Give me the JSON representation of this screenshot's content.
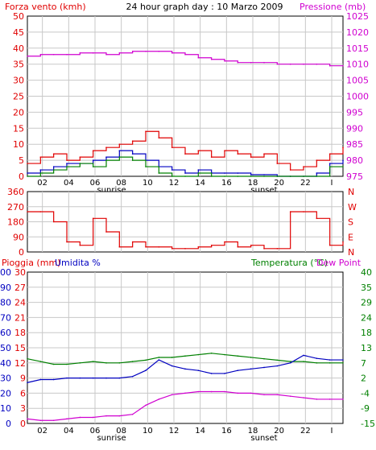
{
  "title": "24 hour graph day : 10 Marzo 2009",
  "colors": {
    "red": "#e00000",
    "green": "#008000",
    "blue": "#0000c0",
    "magenta": "#d000d0",
    "black": "#000000",
    "grid": "#c8c8c8"
  },
  "time_labels": [
    "02",
    "04",
    "06",
    "08",
    "10",
    "12",
    "14",
    "16",
    "18",
    "20",
    "22",
    "I"
  ],
  "sunrise_label": "sunrise",
  "sunset_label": "sunset",
  "chart_data": [
    {
      "type": "line",
      "id": "wind-pressure",
      "left_axis_label": "Forza vento (kmh)",
      "right_axis_label": "Pressione (mb)",
      "left_ticks": [
        "50",
        "45",
        "40",
        "35",
        "30",
        "25",
        "20",
        "15",
        "10",
        "5",
        "0"
      ],
      "right_ticks": [
        "1025",
        "1020",
        "1015",
        "1010",
        "1005",
        "1000",
        "995",
        "990",
        "985",
        "980",
        "975"
      ],
      "ylim_left": [
        0,
        50
      ],
      "ylim_right": [
        975,
        1025
      ],
      "x": [
        0,
        1,
        2,
        3,
        4,
        5,
        6,
        7,
        8,
        9,
        10,
        11,
        12,
        13,
        14,
        15,
        16,
        17,
        18,
        19,
        20,
        21,
        22,
        23,
        24
      ],
      "series": [
        {
          "name": "Pressione (mb)",
          "color": "magenta",
          "axis": "right",
          "values": [
            1012.5,
            1013,
            1013,
            1013,
            1013.5,
            1013.5,
            1013,
            1013.5,
            1014,
            1014,
            1014,
            1013.5,
            1013,
            1012,
            1011.5,
            1011,
            1010.5,
            1010.5,
            1010.5,
            1010,
            1010,
            1010,
            1010,
            1009.5,
            1009.5
          ]
        },
        {
          "name": "Wind gust",
          "color": "red",
          "axis": "left",
          "values": [
            4,
            6,
            7,
            5,
            6,
            8,
            9,
            10,
            11,
            14,
            12,
            9,
            7,
            8,
            6,
            8,
            7,
            6,
            7,
            4,
            2,
            3,
            5,
            7,
            9
          ]
        },
        {
          "name": "Wind average",
          "color": "blue",
          "axis": "left",
          "values": [
            1,
            2,
            3,
            4,
            4,
            5,
            6,
            8,
            7,
            5,
            3,
            2,
            1,
            2,
            1,
            1,
            1,
            0.5,
            0.5,
            0,
            0,
            0,
            1,
            4,
            5
          ]
        },
        {
          "name": "Wind green",
          "color": "green",
          "axis": "left",
          "values": [
            0,
            1,
            2,
            3,
            4,
            3,
            5,
            6,
            5,
            3,
            1,
            0,
            0,
            1,
            0,
            0,
            0,
            0,
            0,
            0,
            0,
            0,
            0,
            3,
            3
          ]
        }
      ]
    },
    {
      "type": "line",
      "id": "wind-direction",
      "left_ticks": [
        "360",
        "270",
        "180",
        "90",
        "0"
      ],
      "right_ticks": [
        "N",
        "W",
        "S",
        "E",
        "N"
      ],
      "ylim": [
        0,
        360
      ],
      "x": [
        0,
        1,
        2,
        3,
        4,
        5,
        6,
        7,
        8,
        9,
        10,
        11,
        12,
        13,
        14,
        15,
        16,
        17,
        18,
        19,
        20,
        21,
        22,
        23,
        24
      ],
      "series": [
        {
          "name": "Direzione",
          "color": "red",
          "values": [
            240,
            240,
            180,
            60,
            40,
            200,
            120,
            30,
            60,
            30,
            30,
            20,
            20,
            30,
            40,
            60,
            30,
            40,
            20,
            20,
            240,
            240,
            200,
            40,
            60
          ]
        }
      ]
    },
    {
      "type": "line",
      "id": "rain-humidity-temperature",
      "left_axis_label_1": "Pioggia (mm)",
      "left_axis_label_2": "Umidita %",
      "right_axis_label": "Temperatura (°C)",
      "right_axis_label_2": "Dew Point",
      "rain_ticks": [
        "30",
        "27",
        "24",
        "21",
        "18",
        "15",
        "12",
        "9",
        "6",
        "3",
        "0"
      ],
      "humidity_ticks": [
        "100",
        "90",
        "80",
        "70",
        "60",
        "50",
        "40",
        "30",
        "20",
        "10",
        "0"
      ],
      "temp_ticks": [
        "40",
        "35",
        "29",
        "24",
        "18",
        "13",
        "7",
        "2",
        "-4",
        "-9",
        "-15"
      ],
      "ylim_left": [
        0,
        100
      ],
      "ylim_right": [
        -15,
        40
      ],
      "x": [
        0,
        1,
        2,
        3,
        4,
        5,
        6,
        7,
        8,
        9,
        10,
        11,
        12,
        13,
        14,
        15,
        16,
        17,
        18,
        19,
        20,
        21,
        22,
        23,
        24
      ],
      "series": [
        {
          "name": "Temperatura (°C)",
          "color": "green",
          "axis": "right",
          "values": [
            8.5,
            7.5,
            6.5,
            6.5,
            7,
            7.5,
            7,
            7,
            7.5,
            8,
            9,
            9,
            9.5,
            10,
            10.5,
            10,
            9.5,
            9,
            8.5,
            8,
            7.5,
            7.5,
            7,
            7,
            7
          ]
        },
        {
          "name": "Umidita %",
          "color": "blue",
          "axis": "left",
          "values": [
            27,
            29,
            29,
            30,
            30,
            30,
            30,
            30,
            31,
            35,
            42,
            38,
            36,
            35,
            33,
            33,
            35,
            36,
            37,
            38,
            40,
            45,
            43,
            42,
            42
          ]
        },
        {
          "name": "Dew Point",
          "color": "magenta",
          "axis": "left",
          "values": [
            3,
            2,
            2,
            3,
            4,
            4,
            5,
            5,
            6,
            12,
            16,
            19,
            20,
            21,
            21,
            21,
            20,
            20,
            19,
            19,
            18,
            17,
            16,
            16,
            16
          ]
        }
      ]
    }
  ]
}
